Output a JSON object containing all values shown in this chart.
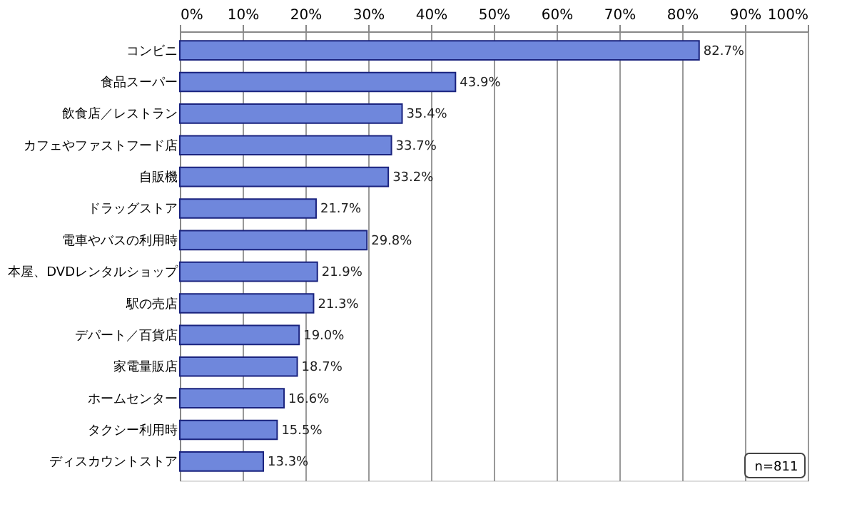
{
  "chart_data": {
    "type": "bar",
    "orientation": "horizontal",
    "categories": [
      "コンビニ",
      "食品スーパー",
      "飲食店／レストラン",
      "カフェやファストフード店",
      "自販機",
      "ドラッグストア",
      "電車やバスの利用時",
      "本屋、DVDレンタルショップ",
      "駅の売店",
      "デパート／百貨店",
      "家電量販店",
      "ホームセンター",
      "タクシー利用時",
      "ディスカウントストア"
    ],
    "values": [
      82.7,
      43.9,
      35.4,
      33.7,
      33.2,
      21.7,
      29.8,
      21.9,
      21.3,
      19.0,
      18.7,
      16.6,
      15.5,
      13.3
    ],
    "value_labels": [
      "82.7%",
      "43.9%",
      "35.4%",
      "33.7%",
      "33.2%",
      "21.7%",
      "29.8%",
      "21.9%",
      "21.3%",
      "19.0%",
      "18.7%",
      "16.6%",
      "15.5%",
      "13.3%"
    ],
    "color": "#6f87dc",
    "xlim": [
      0,
      100
    ],
    "xticks": [
      {
        "value": 0,
        "label": "0%"
      },
      {
        "value": 10,
        "label": "10%"
      },
      {
        "value": 20,
        "label": "20%"
      },
      {
        "value": 30,
        "label": "30%"
      },
      {
        "value": 40,
        "label": "40%"
      },
      {
        "value": 50,
        "label": "50%"
      },
      {
        "value": 60,
        "label": "60%"
      },
      {
        "value": 70,
        "label": "70%"
      },
      {
        "value": 80,
        "label": "80%"
      },
      {
        "value": 90,
        "label": "90%"
      },
      {
        "value": 100,
        "label": "100%"
      }
    ],
    "grid": "x",
    "annotations": [
      "n=811"
    ]
  }
}
